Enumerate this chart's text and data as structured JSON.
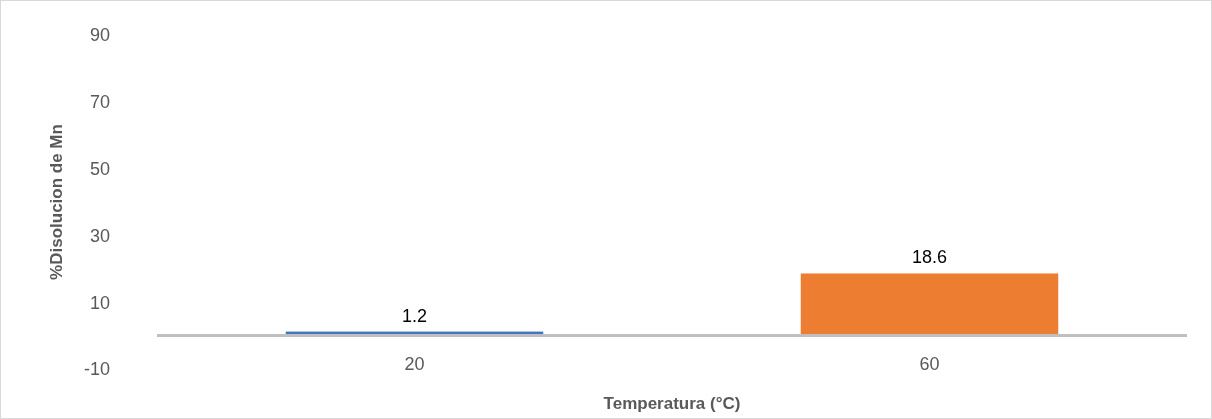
{
  "chart_data": {
    "type": "bar",
    "xlabel": "Temperatura (°C)",
    "ylabel": "%Disolucion de Mn",
    "categories": [
      "20",
      "60"
    ],
    "values": [
      1.2,
      18.6
    ],
    "colors": [
      "#4472c4",
      "#ed7d31"
    ],
    "ylim": [
      -10,
      90
    ],
    "yticks": [
      -10,
      10,
      30,
      50,
      70,
      90
    ],
    "grid": false,
    "data_labels": true
  }
}
